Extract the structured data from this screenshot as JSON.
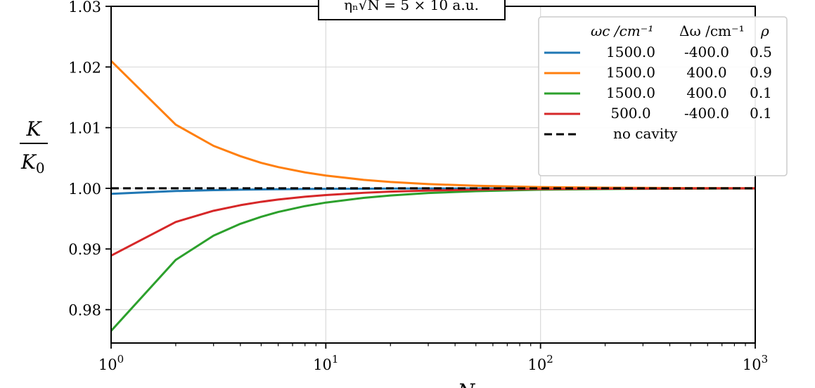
{
  "chart_data": {
    "type": "line",
    "xscale": "log",
    "xlim": [
      1,
      1000
    ],
    "ylim": [
      0.9745,
      1.03
    ],
    "grid": true,
    "xlabel": "N",
    "ylabel": {
      "numerator": "K",
      "denominator": "K",
      "denominator_sub": "0"
    },
    "annotation": "ηₙ√N = 5 × 10 a.u.",
    "x_ticks": [
      {
        "value": 1,
        "base": "10",
        "exp": "0"
      },
      {
        "value": 10,
        "base": "10",
        "exp": "1"
      },
      {
        "value": 100,
        "base": "10",
        "exp": "2"
      },
      {
        "value": 1000,
        "base": "10",
        "exp": "3"
      }
    ],
    "y_ticks": [
      {
        "value": 0.98,
        "label": "0.98"
      },
      {
        "value": 0.99,
        "label": "0.99"
      },
      {
        "value": 1.0,
        "label": "1.00"
      },
      {
        "value": 1.01,
        "label": "1.01"
      },
      {
        "value": 1.02,
        "label": "1.02"
      },
      {
        "value": 1.03,
        "label": "1.03"
      }
    ],
    "legend": {
      "placement": "top-right",
      "header": {
        "col1": "ωc /cm⁻¹",
        "col2": "Δω /cm⁻¹",
        "col3": "ρ"
      }
    },
    "series": [
      {
        "color": "#1f77b4",
        "dash": "solid",
        "cols": [
          "1500.0",
          "-400.0",
          "0.5"
        ],
        "x": [
          1,
          2,
          3,
          4,
          5,
          6,
          8,
          10,
          15,
          20,
          30,
          50,
          100,
          200,
          500,
          1000
        ],
        "y": [
          0.9991,
          0.99955,
          0.9997,
          0.99978,
          0.99982,
          0.99985,
          0.99989,
          0.99991,
          0.99994,
          0.99996,
          0.99997,
          0.99998,
          0.99999,
          1.0,
          1.0,
          1.0
        ]
      },
      {
        "color": "#ff7f0e",
        "dash": "solid",
        "cols": [
          "1500.0",
          "400.0",
          "0.9"
        ],
        "x": [
          1,
          2,
          3,
          4,
          5,
          6,
          8,
          10,
          15,
          20,
          30,
          50,
          100,
          200,
          500,
          1000
        ],
        "y": [
          1.021,
          1.0105,
          1.007,
          1.0053,
          1.0042,
          1.0035,
          1.00263,
          1.0021,
          1.0014,
          1.00105,
          1.0007,
          1.00042,
          1.00021,
          1.0001,
          1.00004,
          1.00002
        ]
      },
      {
        "color": "#2ca02c",
        "dash": "solid",
        "cols": [
          "1500.0",
          "400.0",
          "0.1"
        ],
        "x": [
          1,
          2,
          3,
          4,
          5,
          6,
          8,
          10,
          15,
          20,
          30,
          50,
          100,
          200,
          500,
          1000
        ],
        "y": [
          0.9765,
          0.9882,
          0.9922,
          0.99415,
          0.9953,
          0.9961,
          0.99707,
          0.99765,
          0.99843,
          0.99882,
          0.99922,
          0.99953,
          0.99977,
          0.99988,
          0.99995,
          0.99998
        ]
      },
      {
        "color": "#d62728",
        "dash": "solid",
        "cols": [
          "500.0",
          "-400.0",
          "0.1"
        ],
        "x": [
          1,
          2,
          3,
          4,
          5,
          6,
          8,
          10,
          15,
          20,
          30,
          50,
          100,
          200,
          500,
          1000
        ],
        "y": [
          0.9889,
          0.99445,
          0.9963,
          0.99722,
          0.99778,
          0.99815,
          0.99861,
          0.99889,
          0.99926,
          0.99945,
          0.99963,
          0.99978,
          0.99989,
          0.99994,
          0.99998,
          0.99999
        ]
      },
      {
        "color": "#000000",
        "dash": "dashed",
        "label": "no cavity",
        "x": [
          1,
          1000
        ],
        "y": [
          1.0,
          1.0
        ]
      }
    ]
  }
}
